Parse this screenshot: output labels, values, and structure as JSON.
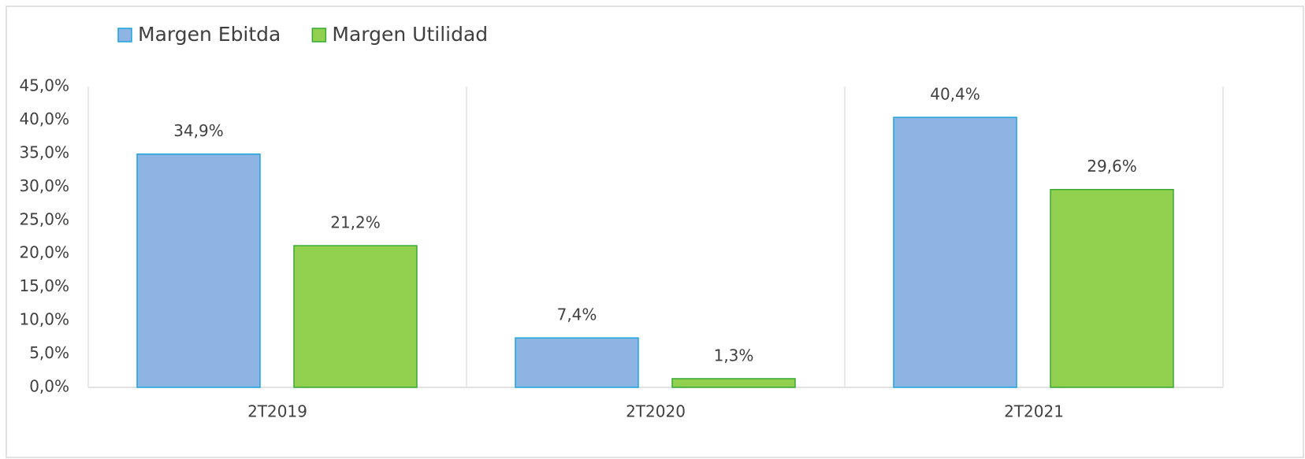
{
  "chart_data": {
    "type": "bar",
    "categories": [
      "2T2019",
      "2T2020",
      "2T2021"
    ],
    "series": [
      {
        "name": "Margen Ebitda",
        "color": "#8eb4e3",
        "values": [
          34.9,
          7.4,
          40.4
        ],
        "value_labels": [
          "34,9%",
          "7,4%",
          "40,4%"
        ]
      },
      {
        "name": "Margen Utilidad",
        "color": "#92d050",
        "values": [
          21.2,
          1.3,
          29.6
        ],
        "value_labels": [
          "21,2%",
          "1,3%",
          "29,6%"
        ]
      }
    ],
    "ylim": [
      0,
      45
    ],
    "yticks": [
      {
        "value": 0,
        "label": "0,0%"
      },
      {
        "value": 5,
        "label": "5,0%"
      },
      {
        "value": 10,
        "label": "10,0%"
      },
      {
        "value": 15,
        "label": "15,0%"
      },
      {
        "value": 20,
        "label": "20,0%"
      },
      {
        "value": 25,
        "label": "25,0%"
      },
      {
        "value": 30,
        "label": "30,0%"
      },
      {
        "value": 35,
        "label": "35,0%"
      },
      {
        "value": 40,
        "label": "40,0%"
      },
      {
        "value": 45,
        "label": "45,0%"
      }
    ],
    "grid": false,
    "legend": "top-left"
  }
}
